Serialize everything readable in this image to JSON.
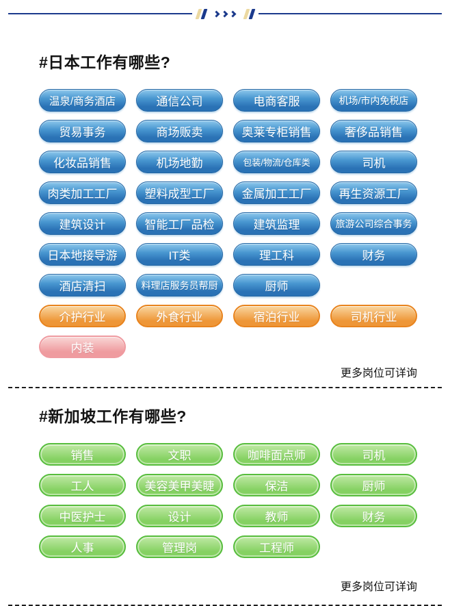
{
  "colors": {
    "navy": "#1b3a8c",
    "tan": "#ecd9a1",
    "blue_top": "#8ec8ec",
    "blue_mid": "#4896d0",
    "blue_bottom": "#2a72b5",
    "blue_rim": "#2265a3",
    "orange_border": "#e8831d",
    "orange_top": "#f9d6a0",
    "orange_bottom": "#ee9637",
    "pink_border": "#ef9aa0",
    "pink_top": "#f9d7d6",
    "pink_bottom": "#ef9b9f",
    "green_border": "#57bd3d",
    "green_top": "#c0e9a5",
    "green_bottom": "#85d162",
    "text_dark": "#111111"
  },
  "top_divider": {
    "icons": [
      "slash-icon",
      "slash-icon",
      "chevron-right-icon",
      "chevron-right-icon",
      "chevron-right-icon",
      "slash-icon",
      "slash-icon"
    ]
  },
  "sections": [
    {
      "id": "japan",
      "title": "#日本工作有哪些?",
      "note": "更多岗位可详询",
      "rows": [
        {
          "variant": "blue",
          "labels": [
            "温泉/商务酒店",
            "通信公司",
            "电商客服",
            "机场/市内免税店"
          ]
        },
        {
          "variant": "blue",
          "labels": [
            "贸易事务",
            "商场贩卖",
            "奥莱专柜销售",
            "奢侈品销售"
          ]
        },
        {
          "variant": "blue",
          "labels": [
            "化妆品销售",
            "机场地勤",
            "包装/物流/仓库类",
            "司机"
          ]
        },
        {
          "variant": "blue",
          "labels": [
            "肉类加工工厂",
            "塑料成型工厂",
            "金属加工工厂",
            "再生资源工厂"
          ]
        },
        {
          "variant": "blue",
          "labels": [
            "建筑设计",
            "智能工厂品检",
            "建筑监理",
            "旅游公司综合事务"
          ]
        },
        {
          "variant": "blue",
          "labels": [
            "日本地接导游",
            "IT类",
            "理工科",
            "财务"
          ]
        },
        {
          "variant": "blue",
          "labels": [
            "酒店清扫",
            "料理店服务员帮厨",
            "厨师"
          ]
        },
        {
          "variant": "orange",
          "labels": [
            "介护行业",
            "外食行业",
            "宿泊行业",
            "司机行业"
          ]
        },
        {
          "variant": "pink",
          "labels": [
            "内装"
          ]
        }
      ]
    },
    {
      "id": "singapore",
      "title": "#新加坡工作有哪些?",
      "note": "更多岗位可详询",
      "rows": [
        {
          "variant": "green",
          "labels": [
            "销售",
            "文职",
            "咖啡面点师",
            "司机"
          ]
        },
        {
          "variant": "green",
          "labels": [
            "工人",
            "美容美甲美睫",
            "保洁",
            "厨师"
          ]
        },
        {
          "variant": "green",
          "labels": [
            "中医护士",
            "设计",
            "教师",
            "财务"
          ]
        },
        {
          "variant": "green",
          "labels": [
            "人事",
            "管理岗",
            "工程师"
          ]
        }
      ]
    }
  ]
}
